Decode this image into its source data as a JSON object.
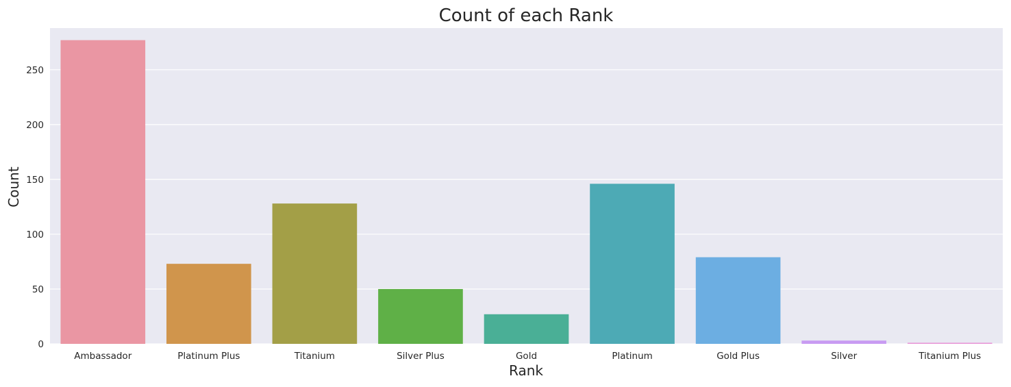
{
  "chart_data": {
    "type": "bar",
    "title": "Count of each Rank",
    "xlabel": "Rank",
    "ylabel": "Count",
    "categories": [
      "Ambassador",
      "Platinum Plus",
      "Titanium",
      "Silver Plus",
      "Gold",
      "Platinum",
      "Gold Plus",
      "Silver",
      "Titanium Plus"
    ],
    "values": [
      277,
      73,
      128,
      50,
      27,
      146,
      79,
      3,
      1
    ],
    "colors": [
      "#ea96a3",
      "#d0954c",
      "#a39f47",
      "#5fb047",
      "#4aaf96",
      "#4daab5",
      "#6caee2",
      "#c89bf2",
      "#e897d8"
    ],
    "ylim": [
      0,
      288
    ],
    "yticks": [
      0,
      50,
      100,
      150,
      200,
      250
    ],
    "grid": true,
    "background": "#e9e9f2",
    "gridColor": "#ffffff"
  }
}
